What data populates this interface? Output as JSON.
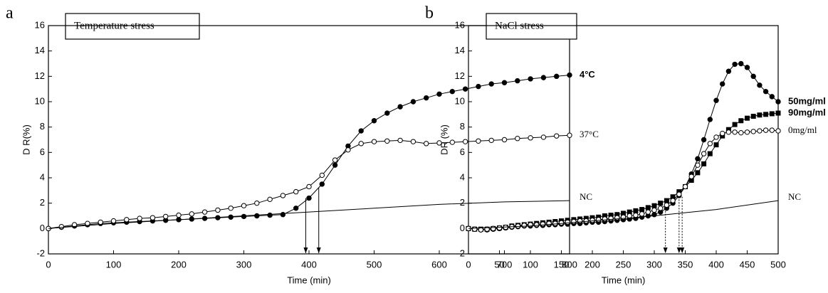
{
  "chart_data": [
    {
      "type": "line",
      "panel": "a",
      "title": "Temperature stress",
      "xlabel": "Time (min)",
      "ylabel": "D R(%)",
      "xlim": [
        0,
        800
      ],
      "ylim": [
        -2,
        16
      ],
      "xticks": [
        0,
        100,
        200,
        300,
        400,
        500,
        600,
        700,
        800
      ],
      "yticks": [
        -2,
        0,
        2,
        4,
        6,
        8,
        10,
        12,
        14,
        16
      ],
      "series": [
        {
          "name": "4°C",
          "color": "#000",
          "marker": "filled-circle",
          "x": [
            0,
            20,
            40,
            60,
            80,
            100,
            120,
            140,
            160,
            180,
            200,
            220,
            240,
            260,
            280,
            300,
            320,
            340,
            360,
            380,
            400,
            420,
            440,
            460,
            480,
            500,
            520,
            540,
            560,
            580,
            600,
            620,
            640,
            660,
            680,
            700,
            720,
            740,
            760,
            780,
            800
          ],
          "values": [
            0,
            0.1,
            0.2,
            0.3,
            0.4,
            0.45,
            0.5,
            0.55,
            0.6,
            0.65,
            0.7,
            0.75,
            0.8,
            0.85,
            0.9,
            0.95,
            1.0,
            1.05,
            1.1,
            1.6,
            2.4,
            3.5,
            5.0,
            6.5,
            7.7,
            8.5,
            9.1,
            9.6,
            10.0,
            10.3,
            10.6,
            10.8,
            11.0,
            11.2,
            11.4,
            11.5,
            11.65,
            11.8,
            11.9,
            12.0,
            12.1
          ]
        },
        {
          "name": "37°C",
          "color": "#000",
          "marker": "open-circle",
          "x": [
            0,
            20,
            40,
            60,
            80,
            100,
            120,
            140,
            160,
            180,
            200,
            220,
            240,
            260,
            280,
            300,
            320,
            340,
            360,
            380,
            400,
            420,
            440,
            460,
            480,
            500,
            520,
            540,
            560,
            580,
            600,
            620,
            640,
            660,
            680,
            700,
            720,
            740,
            760,
            780,
            800
          ],
          "values": [
            0,
            0.15,
            0.3,
            0.4,
            0.5,
            0.6,
            0.7,
            0.8,
            0.85,
            0.95,
            1.05,
            1.15,
            1.3,
            1.45,
            1.6,
            1.8,
            2.0,
            2.3,
            2.6,
            2.9,
            3.3,
            4.2,
            5.4,
            6.2,
            6.7,
            6.85,
            6.9,
            6.95,
            6.85,
            6.7,
            6.75,
            6.8,
            6.85,
            6.9,
            6.95,
            7.0,
            7.1,
            7.15,
            7.2,
            7.3,
            7.35
          ]
        },
        {
          "name": "NC",
          "color": "#000",
          "marker": "none",
          "x": [
            0,
            100,
            200,
            300,
            400,
            500,
            600,
            700,
            800
          ],
          "values": [
            0,
            0.4,
            0.7,
            1.0,
            1.3,
            1.6,
            1.9,
            2.1,
            2.2
          ]
        }
      ],
      "arrows": [
        {
          "x": 395,
          "y": 2.4
        },
        {
          "x": 415,
          "y": 3.2
        }
      ],
      "arrow_style": "solid"
    },
    {
      "type": "line",
      "panel": "b",
      "title": "NaCl stress",
      "xlabel": "Time (min)",
      "ylabel": "DR (%)",
      "xlim": [
        0,
        500
      ],
      "ylim": [
        -2,
        16
      ],
      "xticks": [
        0,
        50,
        100,
        150,
        200,
        250,
        300,
        350,
        400,
        450,
        500
      ],
      "yticks": [
        -2,
        0,
        2,
        4,
        6,
        8,
        10,
        12,
        14,
        16
      ],
      "series": [
        {
          "name": "50mg/ml",
          "color": "#000",
          "marker": "filled-circle",
          "x": [
            0,
            10,
            20,
            30,
            40,
            50,
            60,
            70,
            80,
            90,
            100,
            110,
            120,
            130,
            140,
            150,
            160,
            170,
            180,
            190,
            200,
            210,
            220,
            230,
            240,
            250,
            260,
            270,
            280,
            290,
            300,
            310,
            320,
            330,
            340,
            350,
            360,
            370,
            380,
            390,
            400,
            410,
            420,
            430,
            440,
            450,
            460,
            470,
            480,
            490,
            500
          ],
          "values": [
            0,
            -0.05,
            -0.1,
            -0.1,
            -0.05,
            0,
            0.05,
            0.1,
            0.15,
            0.2,
            0.2,
            0.25,
            0.25,
            0.3,
            0.3,
            0.35,
            0.35,
            0.4,
            0.4,
            0.45,
            0.5,
            0.5,
            0.55,
            0.6,
            0.65,
            0.7,
            0.75,
            0.8,
            0.9,
            1.0,
            1.1,
            1.3,
            1.6,
            2.0,
            2.6,
            3.3,
            4.3,
            5.5,
            7.0,
            8.6,
            10.1,
            11.4,
            12.4,
            12.95,
            13.0,
            12.7,
            12.0,
            11.3,
            10.8,
            10.4,
            10.0
          ]
        },
        {
          "name": "90mg/ml",
          "color": "#000",
          "marker": "filled-square",
          "x": [
            0,
            10,
            20,
            30,
            40,
            50,
            60,
            70,
            80,
            90,
            100,
            110,
            120,
            130,
            140,
            150,
            160,
            170,
            180,
            190,
            200,
            210,
            220,
            230,
            240,
            250,
            260,
            270,
            280,
            290,
            300,
            310,
            320,
            330,
            340,
            350,
            360,
            370,
            380,
            390,
            400,
            410,
            420,
            430,
            440,
            450,
            460,
            470,
            480,
            490,
            500
          ],
          "values": [
            0,
            -0.05,
            -0.05,
            -0.05,
            0,
            0.05,
            0.1,
            0.2,
            0.25,
            0.3,
            0.35,
            0.4,
            0.45,
            0.5,
            0.55,
            0.6,
            0.65,
            0.7,
            0.75,
            0.8,
            0.85,
            0.9,
            1.0,
            1.05,
            1.1,
            1.2,
            1.3,
            1.4,
            1.5,
            1.65,
            1.8,
            2.0,
            2.2,
            2.5,
            2.9,
            3.3,
            3.8,
            4.4,
            5.1,
            5.9,
            6.6,
            7.3,
            7.8,
            8.2,
            8.5,
            8.7,
            8.85,
            8.95,
            9.0,
            9.05,
            9.1
          ]
        },
        {
          "name": "0mg/ml",
          "color": "#000",
          "marker": "open-circle",
          "x": [
            0,
            10,
            20,
            30,
            40,
            50,
            60,
            70,
            80,
            90,
            100,
            110,
            120,
            130,
            140,
            150,
            160,
            170,
            180,
            190,
            200,
            210,
            220,
            230,
            240,
            250,
            260,
            270,
            280,
            290,
            300,
            310,
            320,
            330,
            340,
            350,
            360,
            370,
            380,
            390,
            400,
            410,
            420,
            430,
            440,
            450,
            460,
            470,
            480,
            490,
            500
          ],
          "values": [
            0,
            -0.05,
            -0.1,
            -0.05,
            0,
            0.05,
            0.1,
            0.15,
            0.2,
            0.25,
            0.3,
            0.3,
            0.35,
            0.4,
            0.4,
            0.45,
            0.5,
            0.55,
            0.6,
            0.6,
            0.65,
            0.7,
            0.75,
            0.8,
            0.85,
            0.9,
            1.0,
            1.05,
            1.15,
            1.3,
            1.45,
            1.6,
            1.85,
            2.2,
            2.7,
            3.3,
            4.1,
            5.0,
            5.9,
            6.7,
            7.2,
            7.5,
            7.6,
            7.6,
            7.55,
            7.6,
            7.65,
            7.7,
            7.75,
            7.75,
            7.7
          ]
        },
        {
          "name": "NC",
          "color": "#000",
          "marker": "none",
          "x": [
            0,
            100,
            200,
            300,
            400,
            500
          ],
          "values": [
            0,
            0.2,
            0.6,
            1.0,
            1.5,
            2.2
          ]
        }
      ],
      "arrows": [
        {
          "x": 318,
          "y": 1.6
        },
        {
          "x": 340,
          "y": 2.3
        },
        {
          "x": 345,
          "y": 2.5
        }
      ],
      "arrow_style": "dotted"
    }
  ]
}
